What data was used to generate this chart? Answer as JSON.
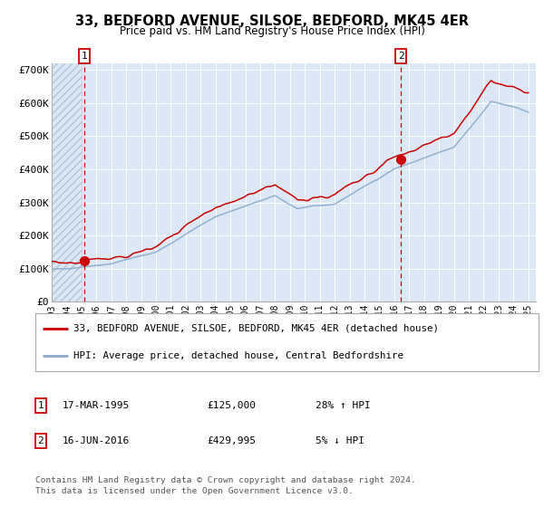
{
  "title": "33, BEDFORD AVENUE, SILSOE, BEDFORD, MK45 4ER",
  "subtitle": "Price paid vs. HM Land Registry's House Price Index (HPI)",
  "yticks": [
    0,
    100000,
    200000,
    300000,
    400000,
    500000,
    600000,
    700000
  ],
  "ytick_labels": [
    "£0",
    "£100K",
    "£200K",
    "£300K",
    "£400K",
    "£500K",
    "£600K",
    "£700K"
  ],
  "bg_color": "#dce8f5",
  "grid_color": "#ffffff",
  "red_line_color": "#cc0000",
  "blue_line_color": "#88aacc",
  "sale1_date": "17-MAR-1995",
  "sale1_price": 125000,
  "sale1_label": "28% ↑ HPI",
  "sale2_date": "16-JUN-2016",
  "sale2_price": 429995,
  "sale2_label": "5% ↓ HPI",
  "legend1": "33, BEDFORD AVENUE, SILSOE, BEDFORD, MK45 4ER (detached house)",
  "legend2": "HPI: Average price, detached house, Central Bedfordshire",
  "footnote": "Contains HM Land Registry data © Crown copyright and database right 2024.\nThis data is licensed under the Open Government Licence v3.0.",
  "sale1_year": 1995.21,
  "sale2_year": 2016.45,
  "xmin": 1993,
  "xmax": 2025.5,
  "ymin": 0,
  "ymax": 720000
}
